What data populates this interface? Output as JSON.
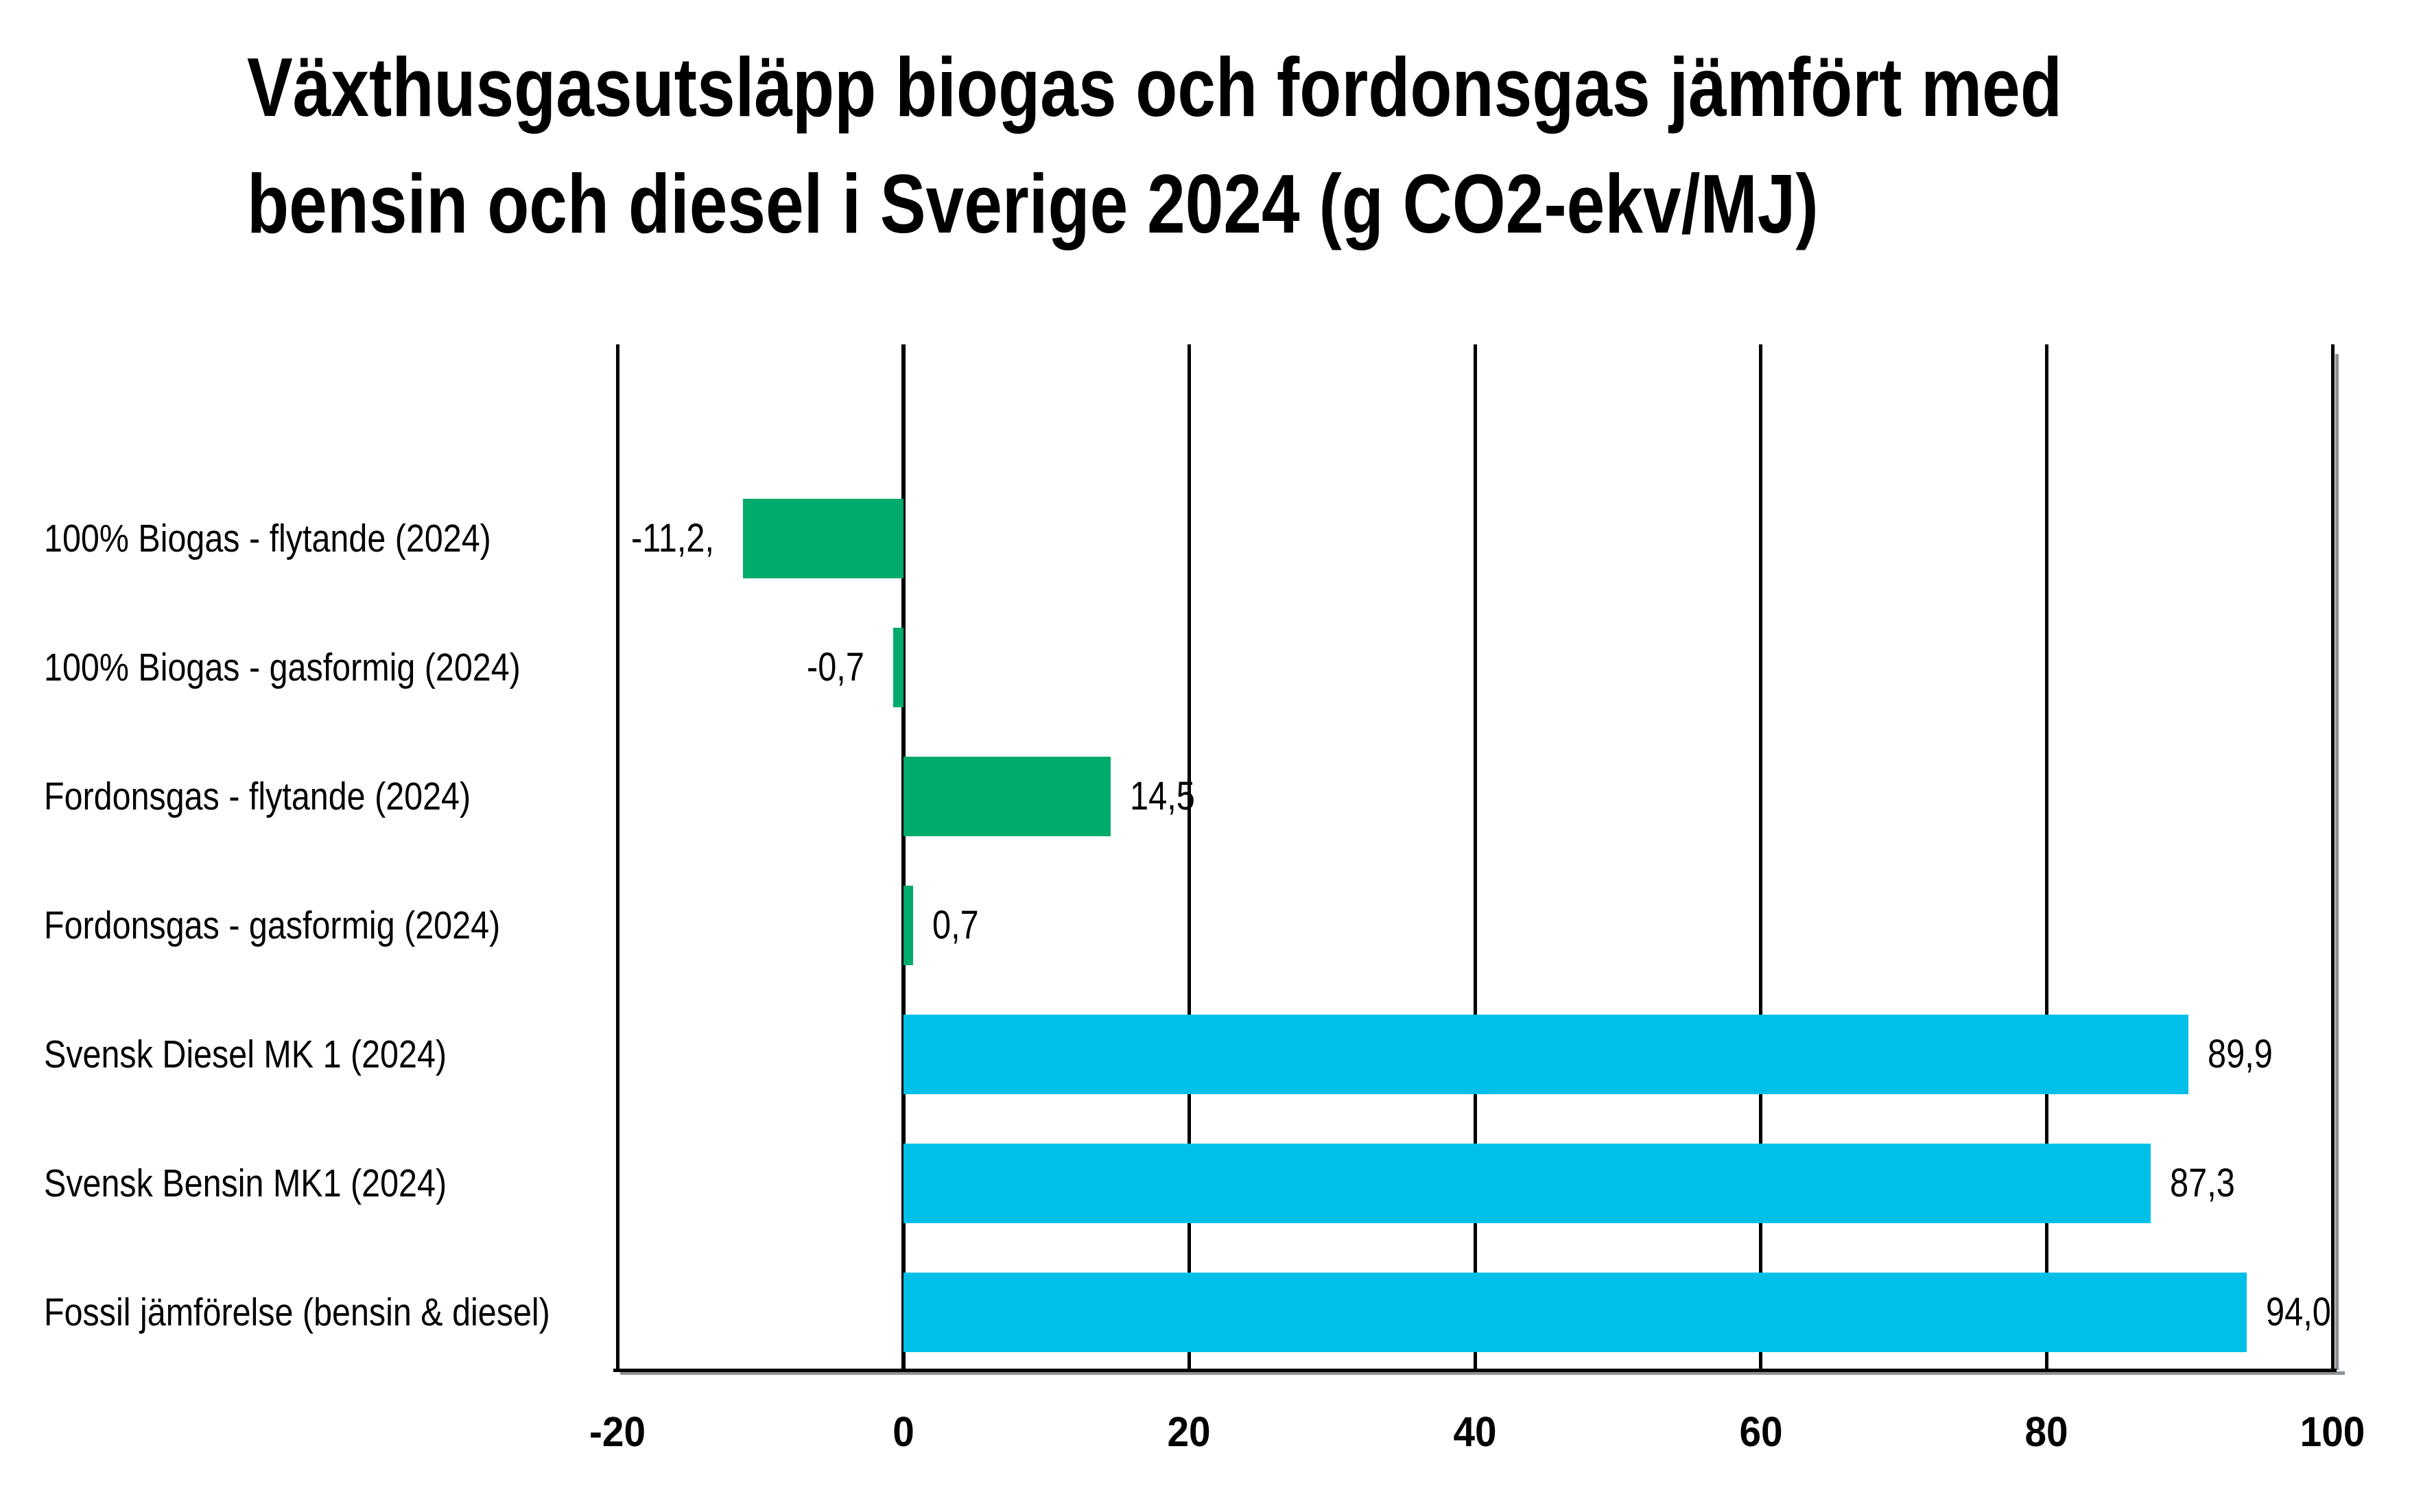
{
  "page": {
    "background": "#ffffff"
  },
  "chart_data": {
    "type": "bar",
    "orientation": "horizontal",
    "title": "Växthusgasutsläpp biogas och fordonsgas jämfört med bensin och diesel i Sverige 2024 (g CO2-ekv/MJ)",
    "title_lines": [
      "Växthusgasutsläpp biogas och fordonsgas jämfört med",
      "bensin och diesel i Sverige 2024 (g CO2-ekv/MJ)"
    ],
    "value_unit": "g CO2-ekv/MJ",
    "categories": [
      "100% Biogas - flytande (2024)",
      "100% Biogas - gasformig (2024)",
      "Fordonsgas - flytande (2024)",
      "Fordonsgas - gasformig (2024)",
      "Svensk Diesel MK 1 (2024)",
      "Svensk Bensin MK1 (2024)",
      "Fossil jämförelse (bensin & diesel)"
    ],
    "values": [
      -11.2,
      -0.7,
      14.5,
      0.7,
      89.9,
      87.3,
      94.0
    ],
    "value_labels": [
      "-11,2,",
      "-0,7",
      "14,5",
      "0,7",
      "89,9",
      "87,3",
      "94,0"
    ],
    "bar_color_keys": [
      "green",
      "green",
      "green",
      "green",
      "cyan",
      "cyan",
      "cyan"
    ],
    "palette": {
      "green": "#00AB6B",
      "cyan": "#00C0EA",
      "axis": "#000000",
      "axis_shadow": "#8B9196",
      "text": "#000000",
      "background": "#ffffff"
    },
    "x_axis": {
      "min": -20,
      "max": 100,
      "ticks": [
        -20,
        0,
        20,
        40,
        60,
        80,
        100
      ],
      "tick_labels": [
        "-20",
        "0",
        "20",
        "40",
        "60",
        "80",
        "100"
      ],
      "gridlines": true
    },
    "legend": "none",
    "grid": "vertical-only"
  }
}
